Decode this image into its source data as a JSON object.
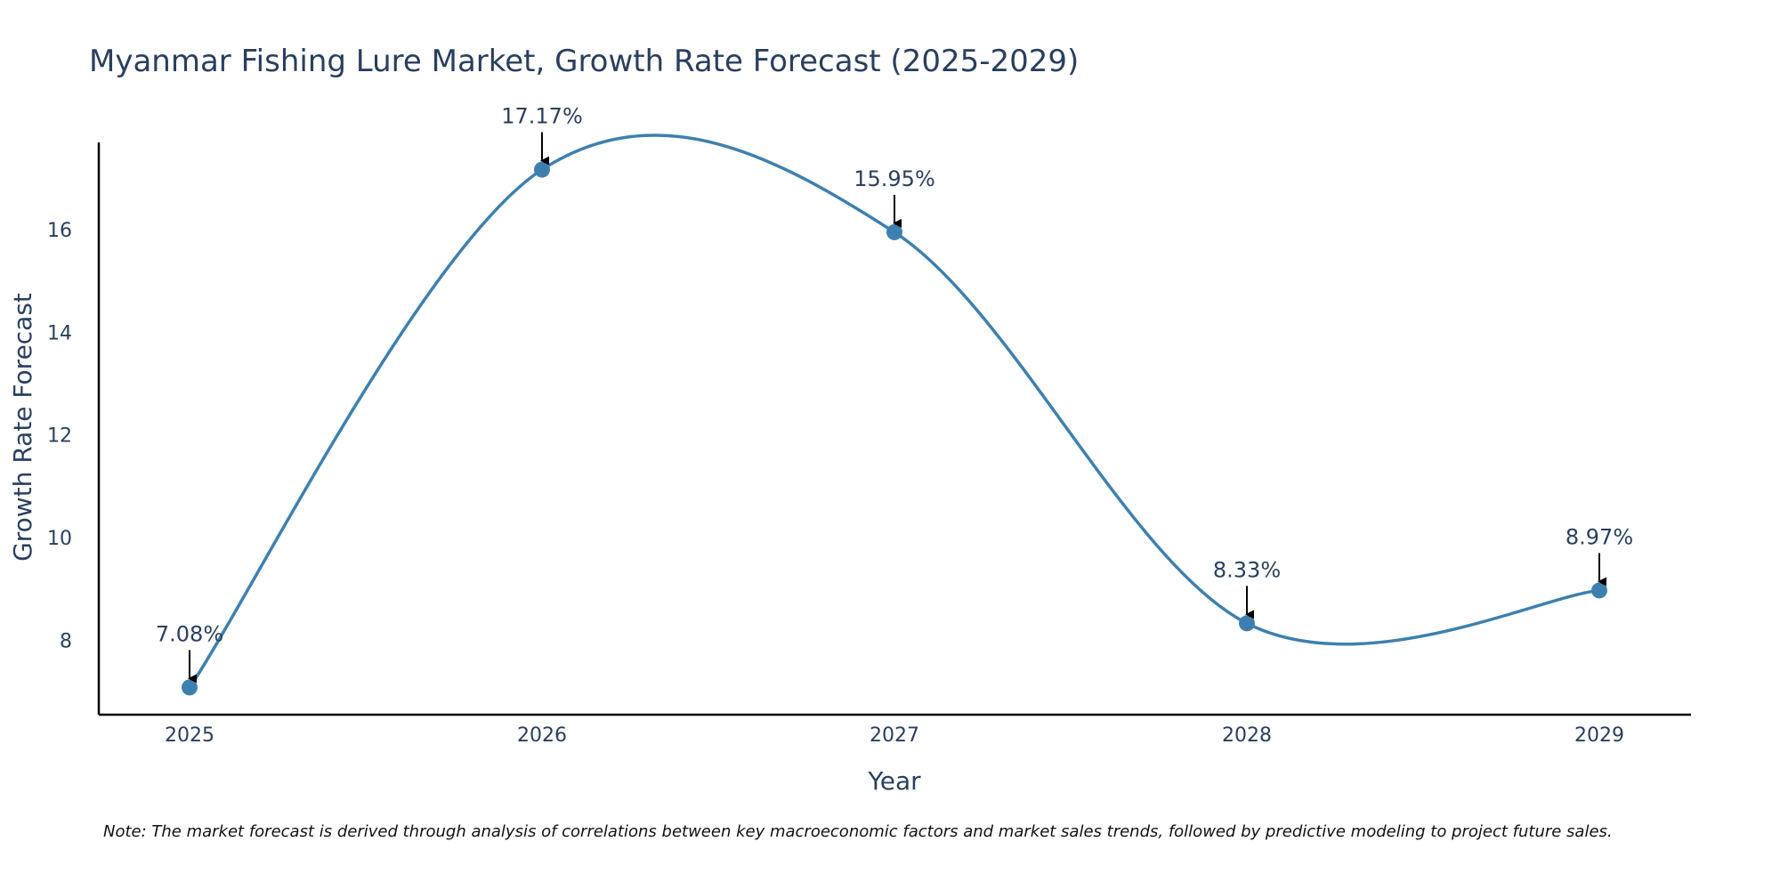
{
  "colors": {
    "line": "#3d80b0",
    "marker": "#3d80b0",
    "axis": "#000000",
    "text": "#2a3f5f",
    "arrow": "#000000"
  },
  "chart_data": {
    "type": "line",
    "title": "Myanmar Fishing Lure Market, Growth Rate Forecast (2025-2029)",
    "xlabel": "Year",
    "ylabel": "Growth Rate Forecast",
    "categories": [
      "2025",
      "2026",
      "2027",
      "2028",
      "2029"
    ],
    "series": [
      {
        "name": "Growth Rate Forecast",
        "values": [
          7.08,
          17.17,
          15.95,
          8.33,
          8.97
        ]
      }
    ],
    "data_labels": [
      "7.08%",
      "17.17%",
      "15.95%",
      "8.33%",
      "8.97%"
    ],
    "ylim": [
      6.55,
      17.7
    ],
    "yticks": [
      8,
      10,
      12,
      14,
      16
    ],
    "ytick_labels": [
      "8",
      "10",
      "12",
      "14",
      "16"
    ],
    "grid": false,
    "smoothing": "spline",
    "note": "Note: The market forecast is derived through analysis of correlations between key macroeconomic factors and market sales trends, followed by predictive modeling to project future sales."
  }
}
